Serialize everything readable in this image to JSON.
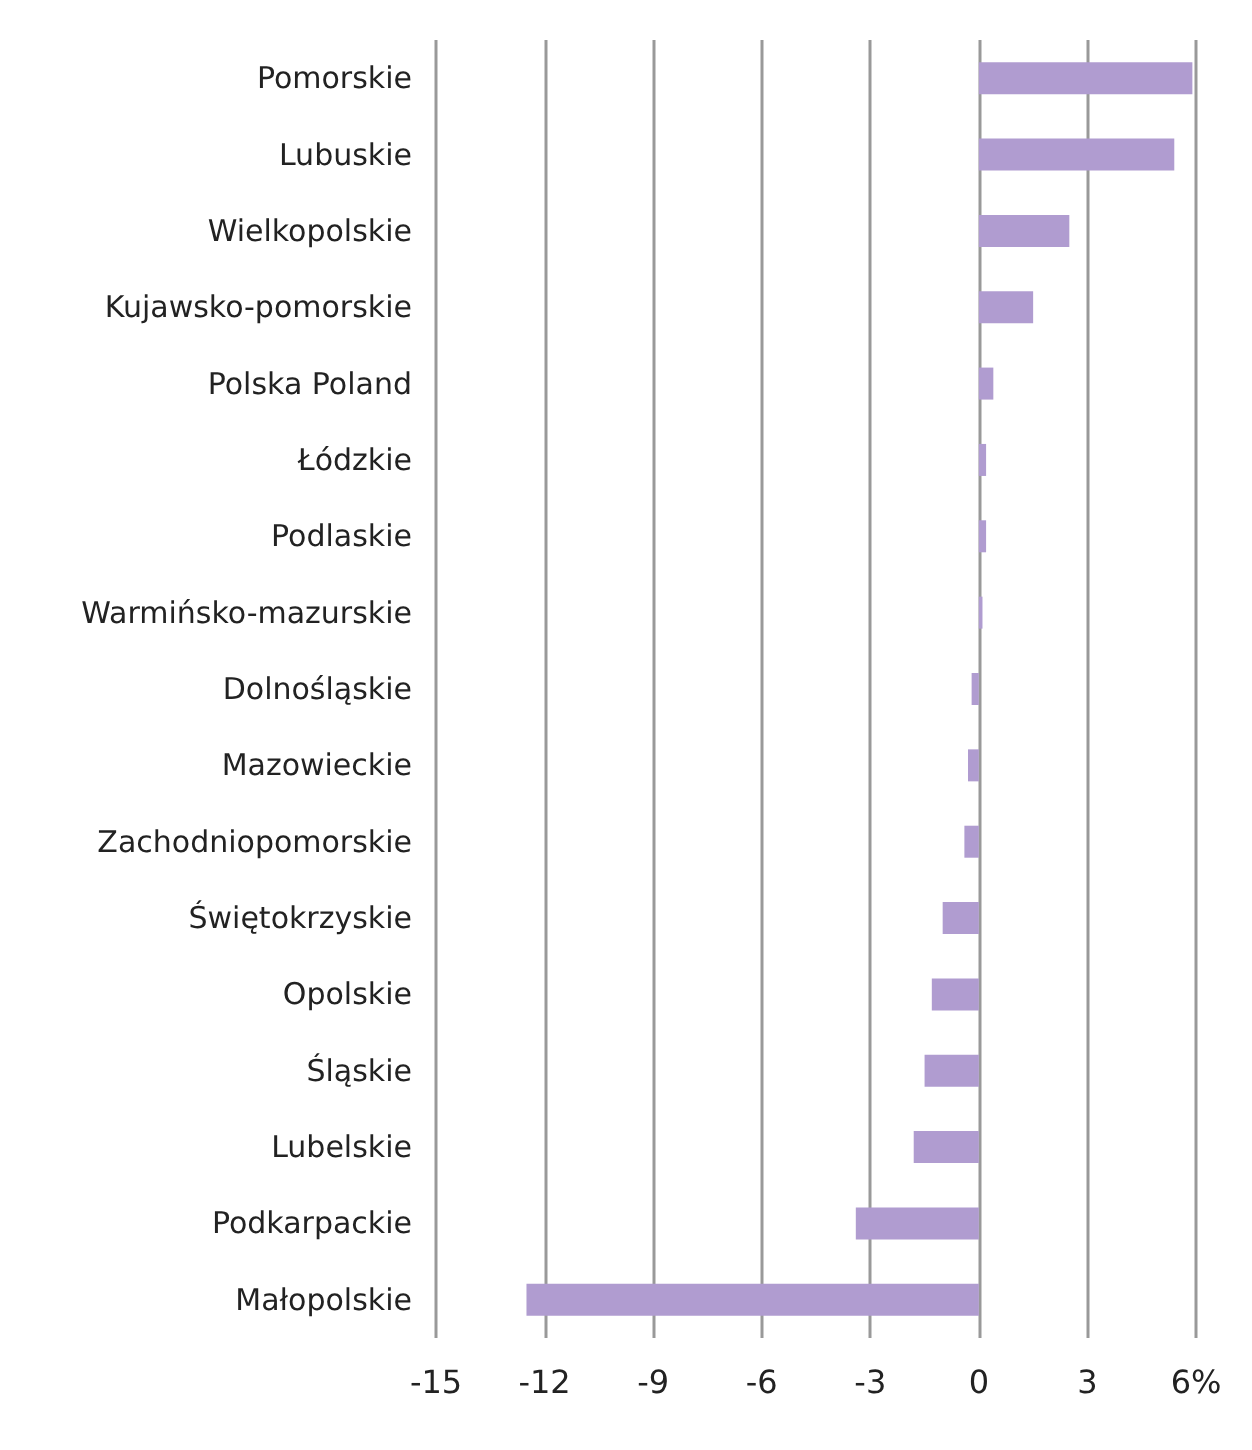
{
  "chart_data": {
    "type": "bar",
    "orientation": "horizontal",
    "categories": [
      "Pomorskie",
      "Lubuskie",
      "Wielkopolskie",
      "Kujawsko-pomorskie",
      "Polska Poland",
      "Łódzkie",
      "Podlaskie",
      "Warmińsko-mazurskie",
      "Dolnośląskie",
      "Mazowieckie",
      "Zachodniopomorskie",
      "Świętokrzyskie",
      "Opolskie",
      "Śląskie",
      "Lubelskie",
      "Podkarpackie",
      "Małopolskie"
    ],
    "values": [
      5.9,
      5.4,
      2.5,
      1.5,
      0.4,
      0.2,
      0.2,
      0.1,
      -0.2,
      -0.3,
      -0.4,
      -1.0,
      -1.3,
      -1.5,
      -1.8,
      -3.4,
      -12.5
    ],
    "color": "#b09cd0",
    "xlim": [
      -15,
      6
    ],
    "xticks": [
      -15,
      -12,
      -9,
      -6,
      -3,
      0,
      3,
      {
        "value": 6,
        "label": "6%"
      }
    ],
    "grid": "x"
  }
}
